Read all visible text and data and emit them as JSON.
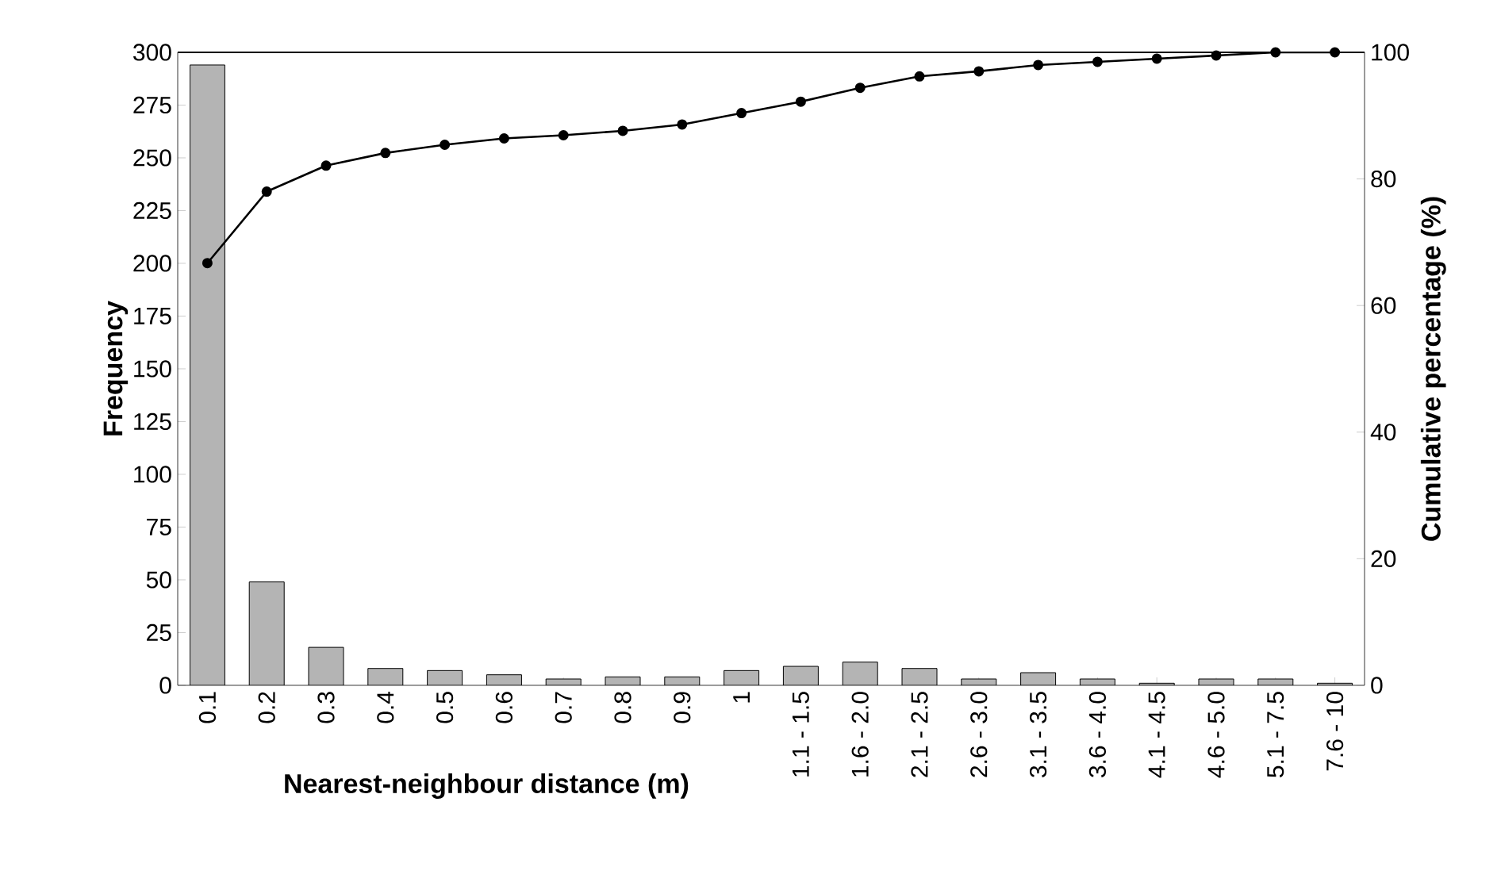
{
  "chart_data": {
    "type": "bar",
    "xlabel": "Nearest-neighbour distance (m)",
    "ylabel": "Frequency",
    "y2label": "Cumulative percentage (%)",
    "categories": [
      "0.1",
      "0.2",
      "0.3",
      "0.4",
      "0.5",
      "0.6",
      "0.7",
      "0.8",
      "0.9",
      "1",
      "1.1 - 1.5",
      "1.6 - 2.0",
      "2.1 - 2.5",
      "2.6 - 3.0",
      "3.1 - 3.5",
      "3.6 - 4.0",
      "4.1 - 4.5",
      "4.6 - 5.0",
      "5.1 - 7.5",
      "7.6 - 10"
    ],
    "series": [
      {
        "color": "#b4b4b4",
        "values": [
          294,
          49,
          18,
          8,
          7,
          5,
          3,
          4,
          4,
          7,
          9,
          11,
          8,
          3,
          6,
          3,
          1,
          3,
          3,
          1
        ]
      },
      {
        "type": "line",
        "axis": "y2",
        "color": "#000000",
        "marker": "circle",
        "values": [
          66.7,
          78.0,
          82.1,
          84.1,
          85.4,
          86.4,
          86.9,
          87.6,
          88.6,
          90.4,
          92.2,
          94.4,
          96.2,
          97.0,
          98.0,
          98.5,
          99.0,
          99.5,
          100,
          100
        ]
      }
    ],
    "ylim": [
      0,
      300
    ],
    "yticks": [
      0,
      25,
      50,
      75,
      100,
      125,
      150,
      175,
      200,
      225,
      250,
      275,
      300
    ],
    "y2lim": [
      0,
      100
    ],
    "y2ticks": [
      0,
      20,
      40,
      60,
      80,
      100
    ]
  }
}
